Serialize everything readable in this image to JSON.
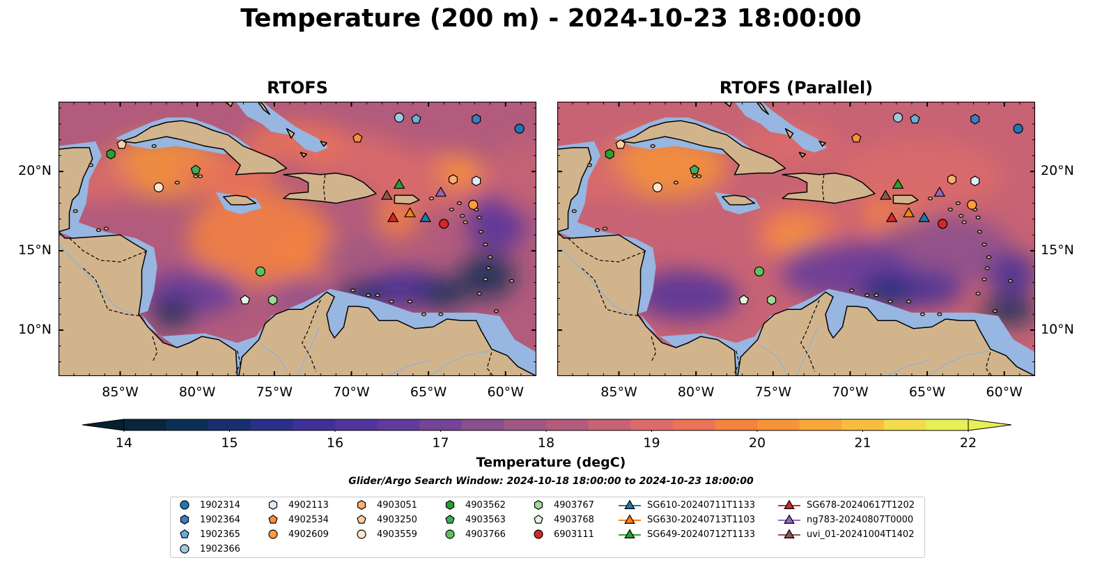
{
  "title": "Temperature (200 m) - 2024-10-23 18:00:00",
  "panels": [
    {
      "id": "left",
      "title": "RTOFS"
    },
    {
      "id": "right",
      "title": "RTOFS (Parallel)"
    }
  ],
  "axes": {
    "lon_labels": [
      "85°W",
      "80°W",
      "75°W",
      "70°W",
      "65°W",
      "60°W"
    ],
    "lon_values": [
      -85,
      -80,
      -75,
      -70,
      -65,
      -60
    ],
    "lat_labels": [
      "20°N",
      "15°N",
      "10°N"
    ],
    "lat_values": [
      20,
      15,
      10
    ],
    "lon_range": [
      -89,
      -58
    ],
    "lat_range": [
      7.1,
      24.4
    ]
  },
  "colorbar": {
    "label": "Temperature (degC)",
    "ticks": [
      "14",
      "15",
      "16",
      "17",
      "18",
      "19",
      "20",
      "21",
      "22"
    ],
    "range": [
      14,
      22
    ],
    "step": 0.5,
    "extend": "both",
    "colors": [
      "#07263b",
      "#0c2f55",
      "#172f6e",
      "#2a3087",
      "#3f3097",
      "#51349b",
      "#613a9c",
      "#744497",
      "#8a4f8d",
      "#9f5784",
      "#b25b7c",
      "#c76374",
      "#db6b6a",
      "#ea7358",
      "#f4833f",
      "#f79437",
      "#faa839",
      "#fbbd40",
      "#f4db4c",
      "#e6f057"
    ],
    "under_color": "#06202f",
    "over_color": "#e6f057"
  },
  "map_colors": {
    "land": "#d2b48c",
    "shelf": "#97b6e1",
    "deep_ocean": "#06202f",
    "border": "#000000"
  },
  "search_window": "Glider/Argo Search Window: 2024-10-18 18:00:00 to 2024-10-23 18:00:00",
  "observations": [
    {
      "label": "1902314",
      "marker": "circle",
      "color": "#1f77b4",
      "lon": -59.1,
      "lat": 22.7
    },
    {
      "label": "1902364",
      "marker": "hexagon",
      "color": "#3a7ebf",
      "lon": -61.9,
      "lat": 23.3
    },
    {
      "label": "1902365",
      "marker": "pentagon",
      "color": "#6baed6",
      "lon": -65.8,
      "lat": 23.3
    },
    {
      "label": "1902366",
      "marker": "circle",
      "color": "#9ecae1",
      "lon": -66.9,
      "lat": 23.4
    },
    {
      "label": "4902113",
      "marker": "hexagon",
      "color": "#deebf7",
      "lon": -61.9,
      "lat": 19.4
    },
    {
      "label": "4902534",
      "marker": "pentagon",
      "color": "#fd8d3c",
      "lon": -69.6,
      "lat": 22.1
    },
    {
      "label": "4902609",
      "marker": "circle",
      "color": "#fd9c3c",
      "lon": -62.1,
      "lat": 17.9
    },
    {
      "label": "4903051",
      "marker": "hexagon",
      "color": "#fdae6b",
      "lon": -63.4,
      "lat": 19.5
    },
    {
      "label": "4903250",
      "marker": "pentagon",
      "color": "#fdd0a2",
      "lon": -84.9,
      "lat": 21.7
    },
    {
      "label": "4903559",
      "marker": "circle",
      "color": "#fee6ce",
      "lon": -82.5,
      "lat": 19.0
    },
    {
      "label": "4903562",
      "marker": "hexagon",
      "color": "#2ca02c",
      "lon": -85.6,
      "lat": 21.1
    },
    {
      "label": "4903563",
      "marker": "pentagon",
      "color": "#41ab5d",
      "lon": -80.1,
      "lat": 20.1
    },
    {
      "label": "4903766",
      "marker": "circle",
      "color": "#5cc35c",
      "lon": -75.9,
      "lat": 13.7
    },
    {
      "label": "4903767",
      "marker": "hexagon",
      "color": "#a1d99b",
      "lon": -75.1,
      "lat": 11.9
    },
    {
      "label": "4903768",
      "marker": "pentagon",
      "color": "#e5f5e0",
      "lon": -76.9,
      "lat": 11.9
    },
    {
      "label": "6903111",
      "marker": "circle",
      "color": "#d62728",
      "lon": -64.0,
      "lat": 16.7
    },
    {
      "label": "SG610-20240711T1133",
      "marker": "triangle",
      "color": "#1f77b4",
      "lon": -65.2,
      "lat": 17.1
    },
    {
      "label": "SG630-20240713T1103",
      "marker": "triangle",
      "color": "#ff7f0e",
      "lon": -66.2,
      "lat": 17.4
    },
    {
      "label": "SG649-20240712T1133",
      "marker": "triangle",
      "color": "#2ca02c",
      "lon": -66.9,
      "lat": 19.2
    },
    {
      "label": "SG678-20240617T1202",
      "marker": "triangle",
      "color": "#d62728",
      "lon": -67.3,
      "lat": 17.1
    },
    {
      "label": "ng783-20240807T0000",
      "marker": "triangle",
      "color": "#9467bd",
      "lon": -64.2,
      "lat": 18.7
    },
    {
      "label": "uvi_01-20241004T1402",
      "marker": "triangle",
      "color": "#8c564b",
      "lon": -67.7,
      "lat": 18.5
    }
  ]
}
